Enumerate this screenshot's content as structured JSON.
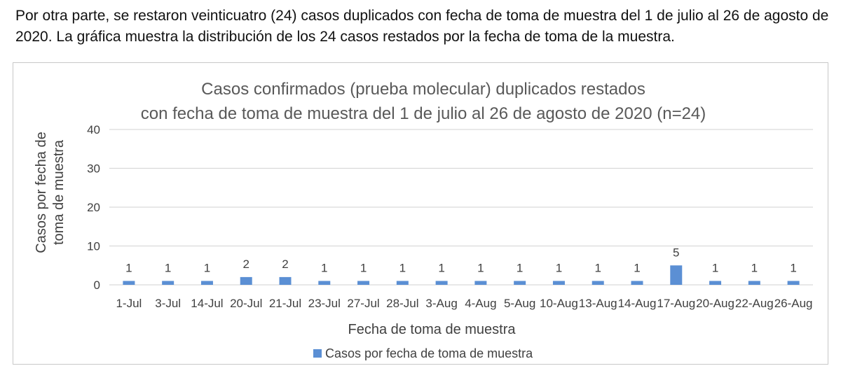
{
  "intro_text": "Por otra parte, se restaron veinticuatro (24) casos duplicados con fecha de toma de muestra del 1 de julio al 26 de agosto de 2020. La gráfica muestra la distribución de los 24 casos restados por la fecha de toma de la muestra.",
  "chart_data": {
    "type": "bar",
    "title_lines": [
      "Casos confirmados (prueba molecular) duplicados restados",
      "con fecha de toma de muestra del 1 de julio al 26 de agosto de 2020 (n=24)"
    ],
    "categories": [
      "1-Jul",
      "3-Jul",
      "14-Jul",
      "20-Jul",
      "21-Jul",
      "23-Jul",
      "27-Jul",
      "28-Jul",
      "3-Aug",
      "4-Aug",
      "5-Aug",
      "10-Aug",
      "13-Aug",
      "14-Aug",
      "17-Aug",
      "20-Aug",
      "22-Aug",
      "26-Aug"
    ],
    "series": [
      {
        "name": "Casos por fecha de toma de muestra",
        "values": [
          1,
          1,
          1,
          2,
          2,
          1,
          1,
          1,
          1,
          1,
          1,
          1,
          1,
          1,
          5,
          1,
          1,
          1
        ],
        "color": "#5b8fd4"
      }
    ],
    "xlabel": "Fecha de toma de muestra",
    "ylabel_lines": [
      "Casos por fecha de",
      "toma de muestra"
    ],
    "ylim": [
      0,
      40
    ],
    "yticks": [
      0,
      10,
      20,
      30,
      40
    ],
    "grid": true,
    "gridline_color": "#d9d9d9",
    "legend_position": "bottom"
  }
}
